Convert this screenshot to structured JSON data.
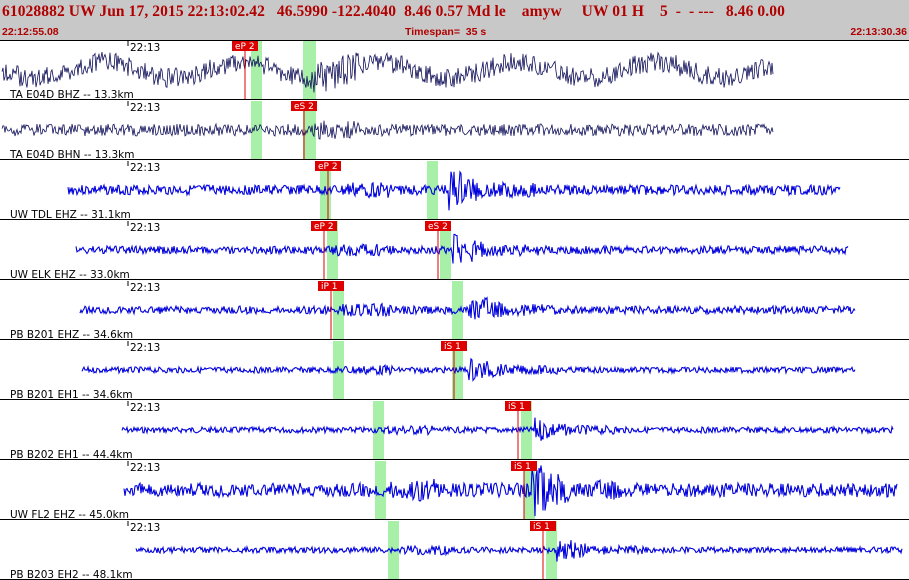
{
  "header": {
    "title": "61028882 UW Jun 17, 2015 22:13:02.42   46.5990 -122.4040  8.46 0.57 Md le    amyw     UW 01 H    5  -  - ---   8.46 0.00",
    "start_time": "22:12:55.08",
    "timespan": "Timespan=  35 s",
    "end_time": "22:13:30.36"
  },
  "colors": {
    "header_bg": "#c8c8c8",
    "header_text": "#b00000",
    "trace_primary": "#0000dd",
    "trace_secondary": "#10105a",
    "pick": "#dd0000",
    "window": "#a8f0a8"
  },
  "traces": [
    {
      "label": "TA E04D BHZ -- 13.3km",
      "time_label": "22:13",
      "pick": "eP 2",
      "style": "dark"
    },
    {
      "label": "TA E04D BHN -- 13.3km",
      "time_label": "22:13",
      "pick": "eS 2",
      "style": "dark"
    },
    {
      "label": "UW TDL EHZ -- 31.1km",
      "time_label": "22:13",
      "pick": "eP 2",
      "style": "blue"
    },
    {
      "label": "UW ELK EHZ -- 33.0km",
      "time_label": "22:13",
      "pick": "eP 2",
      "pick2": "eS 2",
      "style": "blue"
    },
    {
      "label": "PB B201 EHZ -- 34.6km",
      "time_label": "22:13",
      "pick": "iP 1",
      "style": "blue"
    },
    {
      "label": "PB B201 EH1 -- 34.6km",
      "time_label": "22:13",
      "pick": "iS 1",
      "style": "blue"
    },
    {
      "label": "PB B202 EH1 -- 44.4km",
      "time_label": "22:13",
      "pick": "iS 1",
      "style": "blue"
    },
    {
      "label": "UW FL2 EHZ -- 45.0km",
      "time_label": "22:13",
      "pick": "iS 1",
      "style": "blue"
    },
    {
      "label": "PB B203 EH2 -- 48.1km",
      "time_label": "22:13",
      "pick": "iS 1",
      "style": "blue"
    }
  ]
}
